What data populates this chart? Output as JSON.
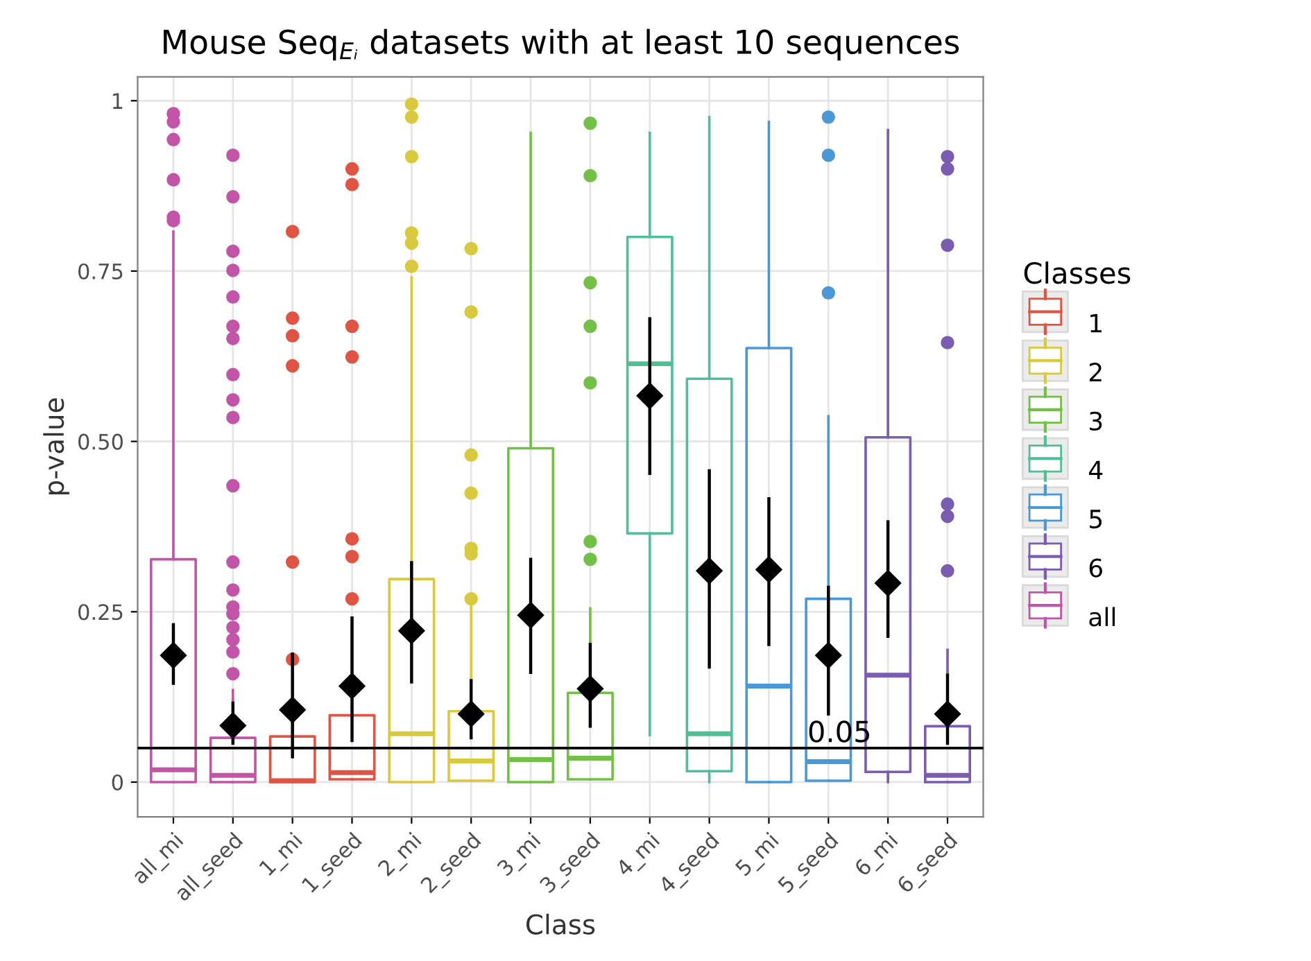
{
  "chart_data": {
    "type": "box",
    "title": "Mouse Seq$_{Eᵢ}$ datasets with at least 10 sequences",
    "xlabel": "Class",
    "ylabel": "p-value",
    "legend_title": "Classes",
    "legend": "right",
    "grid": true,
    "categories": [
      "all_mi",
      "all_seed",
      "1_mi",
      "1_seed",
      "2_mi",
      "2_seed",
      "3_mi",
      "3_seed",
      "4_mi",
      "4_seed",
      "5_mi",
      "5_seed",
      "6_mi",
      "6_seed"
    ],
    "ylim": [
      -0.051,
      1.035
    ],
    "yticks": [
      0,
      {
        "value": 0.25,
        "label": "0.25"
      },
      {
        "value": 0.5,
        "label": "0.50"
      },
      {
        "value": 0.75,
        "label": "0.75"
      },
      1
    ],
    "ref_lines": [
      {
        "axis": "y",
        "value": 0.05,
        "label": "0.05",
        "color": "#000000"
      }
    ],
    "series": [
      {
        "name": "1",
        "color": "#e05444",
        "boxes": [
          null,
          null,
          {
            "low": 0,
            "q1": 0,
            "median": 0.002,
            "q3": 0.067,
            "high": 0.16,
            "outliers": [
              0.808,
              0.681,
              0.655,
              0.611,
              0.323,
              0.18
            ]
          },
          {
            "low": 0.004,
            "q1": 0.004,
            "median": 0.014,
            "q3": 0.098,
            "high": 0.24,
            "outliers": [
              0.9,
              0.877,
              0.669,
              0.624,
              0.357,
              0.331,
              0.269
            ]
          },
          null,
          null,
          null,
          null,
          null,
          null,
          null,
          null,
          null,
          null
        ]
      },
      {
        "name": "2",
        "color": "#d8c93e",
        "boxes": [
          null,
          null,
          null,
          null,
          {
            "low": 0,
            "q1": 0,
            "median": 0.071,
            "q3": 0.298,
            "high": 0.741,
            "outliers": [
              0.995,
              0.976,
              0.918,
              0.806,
              0.791,
              0.757
            ]
          },
          {
            "low": 0.002,
            "q1": 0.002,
            "median": 0.031,
            "q3": 0.104,
            "high": 0.257,
            "outliers": [
              0.783,
              0.69,
              0.48,
              0.424,
              0.343,
              0.335,
              0.269
            ]
          },
          null,
          null,
          null,
          null,
          null,
          null,
          null,
          null
        ]
      },
      {
        "name": "3",
        "color": "#72c045",
        "boxes": [
          null,
          null,
          null,
          null,
          null,
          null,
          {
            "low": 0,
            "q1": 0,
            "median": 0.033,
            "q3": 0.49,
            "high": 0.953
          },
          {
            "low": 0.004,
            "q1": 0.004,
            "median": 0.035,
            "q3": 0.131,
            "high": 0.255,
            "outliers": [
              0.967,
              0.89,
              0.733,
              0.669,
              0.586,
              0.353,
              0.327
            ]
          },
          null,
          null,
          null,
          null,
          null,
          null
        ]
      },
      {
        "name": "4",
        "color": "#4fc096",
        "boxes": [
          null,
          null,
          null,
          null,
          null,
          null,
          null,
          null,
          {
            "low": 0.069,
            "q1": 0.365,
            "median": 0.614,
            "q3": 0.8,
            "high": 0.953
          },
          {
            "low": 0,
            "q1": 0.016,
            "median": 0.071,
            "q3": 0.592,
            "high": 0.976
          },
          null,
          null,
          null,
          null
        ]
      },
      {
        "name": "5",
        "color": "#4a98d6",
        "boxes": [
          null,
          null,
          null,
          null,
          null,
          null,
          null,
          null,
          null,
          null,
          {
            "low": 0,
            "q1": 0,
            "median": 0.141,
            "q3": 0.637,
            "high": 0.969
          },
          {
            "low": 0.002,
            "q1": 0.002,
            "median": 0.03,
            "q3": 0.269,
            "high": 0.537,
            "outliers": [
              0.976,
              0.92,
              0.718
            ]
          },
          null,
          null
        ]
      },
      {
        "name": "6",
        "color": "#7b5cb0",
        "boxes": [
          null,
          null,
          null,
          null,
          null,
          null,
          null,
          null,
          null,
          null,
          null,
          null,
          {
            "low": 0,
            "q1": 0.015,
            "median": 0.157,
            "q3": 0.506,
            "high": 0.957
          },
          {
            "low": 0,
            "q1": 0,
            "median": 0.01,
            "q3": 0.082,
            "high": 0.194,
            "outliers": [
              0.918,
              0.9,
              0.788,
              0.645,
              0.408,
              0.39,
              0.31
            ]
          }
        ]
      },
      {
        "name": "all",
        "color": "#c255a8",
        "boxes": [
          {
            "low": 0,
            "q1": 0,
            "median": 0.018,
            "q3": 0.327,
            "high": 0.808,
            "outliers": [
              0.981,
              0.969,
              0.943,
              0.884,
              0.829,
              0.824
            ]
          },
          {
            "low": 0,
            "q1": 0,
            "median": 0.01,
            "q3": 0.065,
            "high": 0.135,
            "outliers": [
              0.92,
              0.859,
              0.779,
              0.751,
              0.712,
              0.669,
              0.651,
              0.598,
              0.561,
              0.535,
              0.435,
              0.323,
              0.282,
              0.257,
              0.247,
              0.227,
              0.209,
              0.191,
              0.159
            ]
          },
          null,
          null,
          null,
          null,
          null,
          null,
          null,
          null,
          null,
          null,
          null,
          null
        ]
      },
      {
        "type": "scatter",
        "color": "#000000",
        "marker": "diamond",
        "x": [
          "all_mi",
          "all_seed",
          "1_mi",
          "1_seed",
          "2_mi",
          "2_seed",
          "3_mi",
          "3_seed",
          "4_mi",
          "4_seed",
          "5_mi",
          "5_seed",
          "6_mi",
          "6_seed"
        ],
        "values": [
          0.186,
          0.083,
          0.106,
          0.141,
          0.222,
          0.1,
          0.245,
          0.137,
          0.567,
          0.31,
          0.312,
          0.186,
          0.292,
          0.1
        ],
        "errors": [
          [
            0.145,
            0.231
          ],
          [
            0.057,
            0.116
          ],
          [
            0.037,
            0.188
          ],
          [
            0.061,
            0.241
          ],
          [
            0.147,
            0.322
          ],
          [
            0.065,
            0.149
          ],
          [
            0.161,
            0.327
          ],
          [
            0.082,
            0.202
          ],
          [
            0.453,
            0.68
          ],
          [
            0.169,
            0.457
          ],
          [
            0.202,
            0.416
          ],
          [
            0.1,
            0.286
          ],
          [
            0.214,
            0.382
          ],
          [
            0.057,
            0.157
          ]
        ]
      }
    ]
  }
}
